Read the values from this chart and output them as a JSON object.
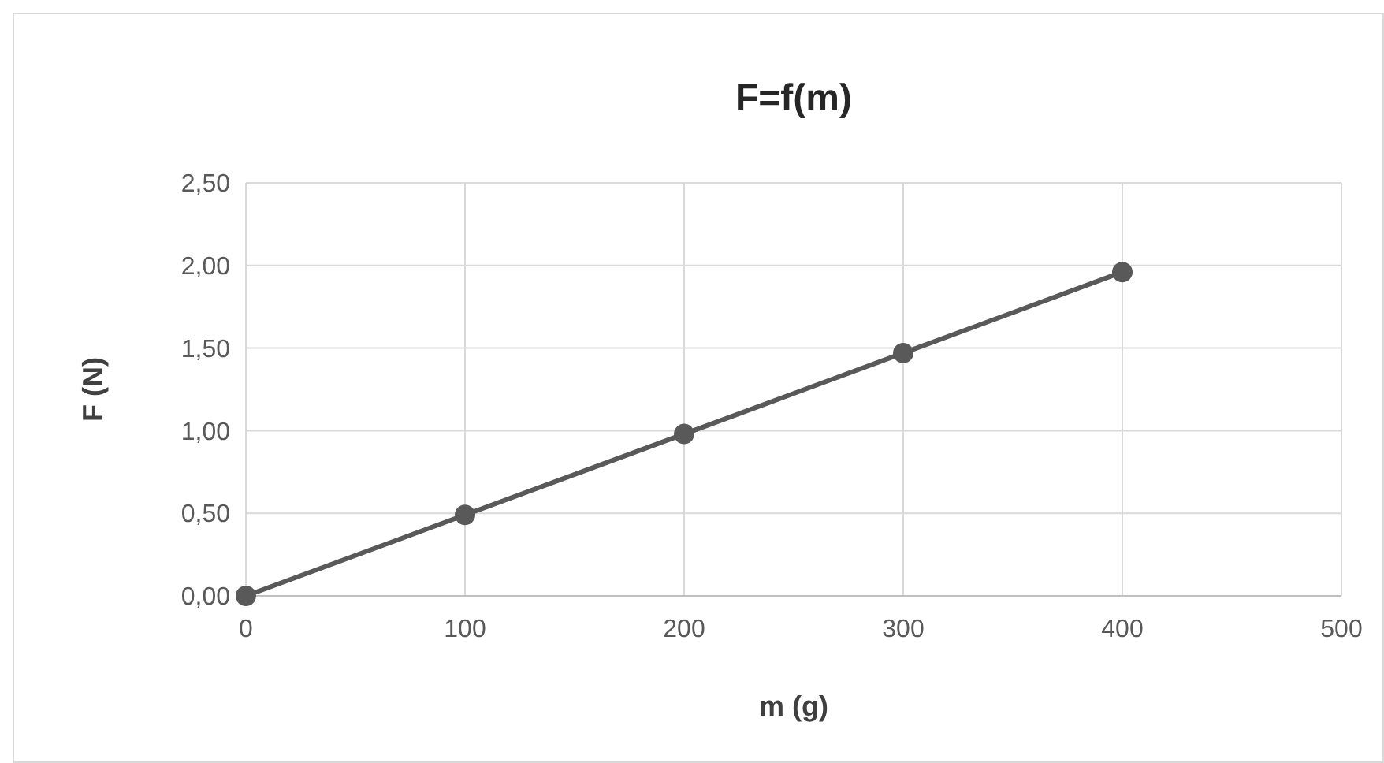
{
  "chart_data": {
    "type": "line",
    "title": "F=f(m)",
    "xlabel": "m (g)",
    "ylabel": "F (N)",
    "x": [
      0,
      100,
      200,
      300,
      400
    ],
    "series": [
      {
        "color": "#595959",
        "values": [
          0,
          0.49,
          0.98,
          1.47,
          1.96
        ]
      }
    ],
    "xlim": [
      0,
      500
    ],
    "xticks": [
      0,
      100,
      200,
      300,
      400,
      500
    ],
    "ylim": [
      0,
      2.5
    ],
    "yticks": [
      {
        "value": 0,
        "label": "0,00"
      },
      {
        "value": 0.5,
        "label": "0,50"
      },
      {
        "value": 1,
        "label": "1,00"
      },
      {
        "value": 1.5,
        "label": "1,50"
      },
      {
        "value": 2,
        "label": "2,00"
      },
      {
        "value": 2.5,
        "label": "2,50"
      }
    ],
    "grid": true,
    "marker": "circle",
    "line_style": "solid"
  }
}
